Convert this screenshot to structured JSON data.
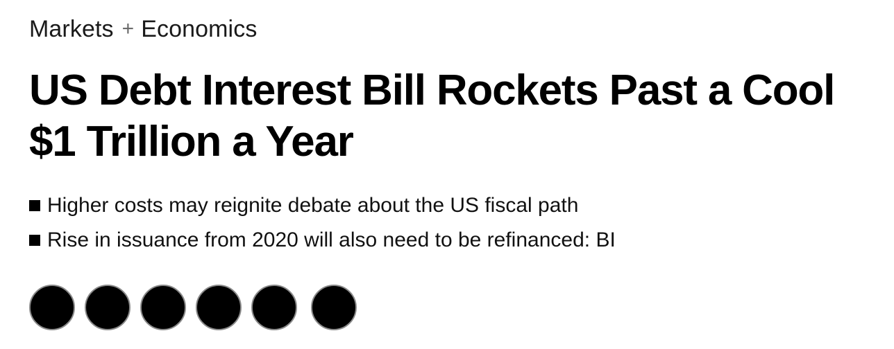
{
  "breadcrumb": {
    "section": "Markets",
    "separator": "+",
    "subsection": "Economics"
  },
  "headline": "US Debt Interest Bill Rockets Past a Cool $1 Trillion a Year",
  "bullets": [
    "Higher costs may reignite debate about the US fiscal path",
    "Rise in issuance from 2020 will also need to be refinanced: BI"
  ],
  "share_buttons": [
    {
      "icon": "share-circle-icon"
    },
    {
      "icon": "share-circle-icon"
    },
    {
      "icon": "share-circle-icon"
    },
    {
      "icon": "share-circle-icon"
    },
    {
      "icon": "share-circle-icon"
    },
    {
      "icon": "share-circle-icon"
    }
  ],
  "colors": {
    "text": "#000000",
    "separator": "#6b6b6b",
    "button_fill": "#000000",
    "button_border": "#8a8a8a",
    "background": "#ffffff"
  }
}
